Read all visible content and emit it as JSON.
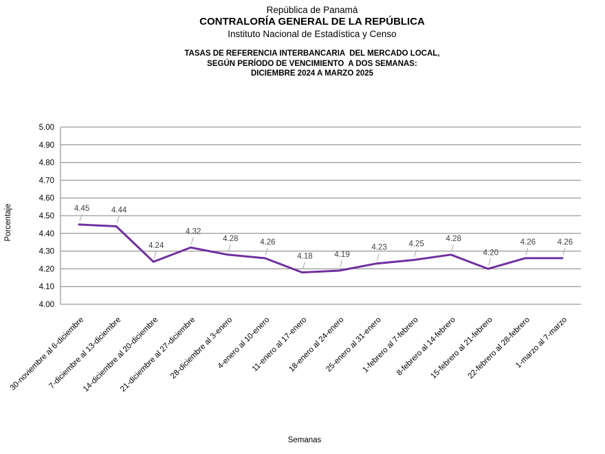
{
  "header": {
    "line1": "República de Panamá",
    "line2": "CONTRALORÍA GENERAL DE LA REPÚBLICA",
    "line3": "Instituto Nacional de Estadística y Censo"
  },
  "chart_data": {
    "type": "line",
    "title": "TASAS DE REFERENCIA INTERBANCARIA DEL MERCADO LOCAL, SEGÚN PERÍODO DE VENCIMIENTO A DOS SEMANAS: DICIEMBRE 2024 A MARZO 2025",
    "title_lines": [
      "TASAS DE REFERENCIA INTERBANCARIA  DEL MERCADO LOCAL,",
      "SEGÚN PERÍODO DE VENCIMIENTO  A DOS SEMANAS:",
      "DICIEMBRE 2024 A MARZO 2025"
    ],
    "categories": [
      "30-noviembre al 6-diciembre",
      "7-diciembre al 13-diciembre",
      "14-diciembre al 20-diciembre",
      "21-diciembre al 27-diciembre",
      "28-diciembre al 3-enero",
      "4-enero al 10-enero",
      "11-enero al 17-enero",
      "18-enero al 24-enero",
      "25-enero al 31-enero",
      "1-febrero al 7-febrero",
      "8-febrero al 14-febrero",
      "15-febrero al 21-febrero",
      "22-febrero al 28-febrero",
      "1-marzo al 7-marzo"
    ],
    "values": [
      4.45,
      4.44,
      4.24,
      4.32,
      4.28,
      4.26,
      4.18,
      4.19,
      4.23,
      4.25,
      4.28,
      4.2,
      4.26,
      4.26
    ],
    "data_labels": [
      "4.45",
      "4.44",
      "4.24",
      "4.32",
      "4.28",
      "4.26",
      "4.18",
      "4.19",
      "4.23",
      "4.25",
      "4.28",
      "4.20",
      "4.26",
      "4.26"
    ],
    "xlabel": "Semanas",
    "ylabel": "Porcentaje",
    "ylim": [
      4.0,
      5.0
    ],
    "yticks": [
      "4.00",
      "4.10",
      "4.20",
      "4.30",
      "4.40",
      "4.50",
      "4.60",
      "4.70",
      "4.80",
      "4.90",
      "5.00"
    ],
    "grid": true,
    "legend": "none",
    "colors": {
      "line": "#7030A0",
      "grid": "#808080",
      "axis": "#808080",
      "data_label": "#404040",
      "leader_line": "#A6A6A6",
      "text": "#000000"
    }
  }
}
